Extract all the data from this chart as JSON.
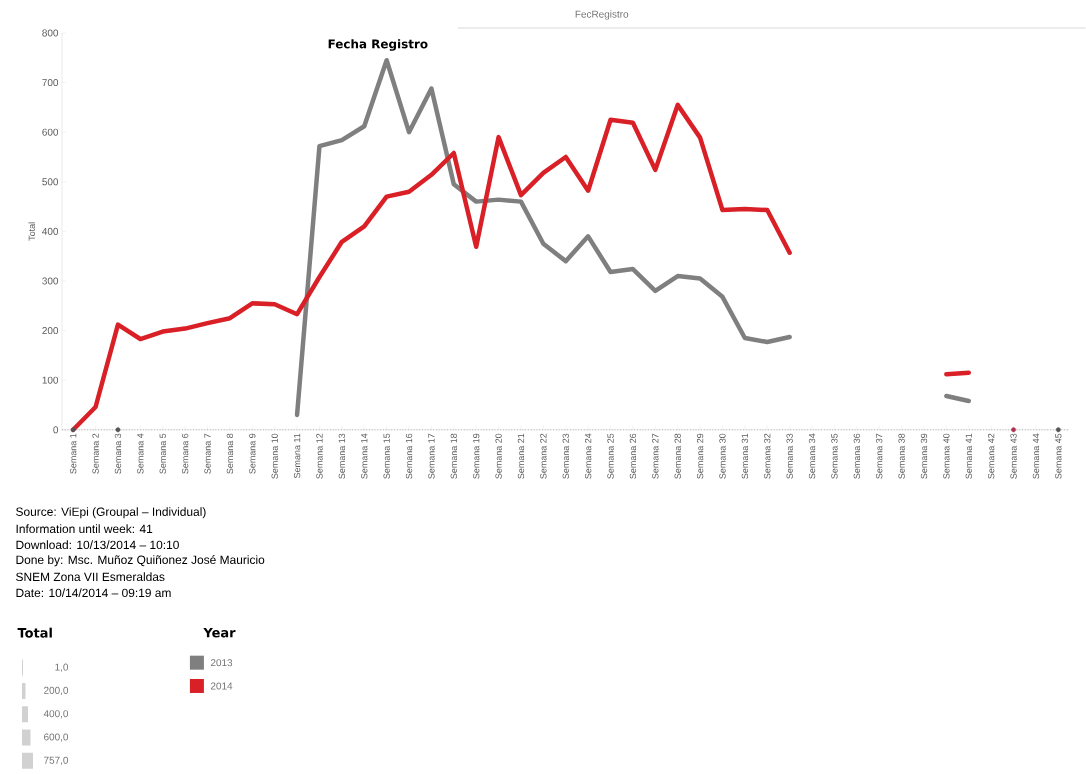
{
  "chart_data": {
    "type": "line",
    "title": "Fecha Registro",
    "subtitle": "FecRegistro",
    "ylabel": "Total",
    "legend_title": "Year",
    "categories": [
      "Semana 1",
      "Semana 2",
      "Semana 3",
      "Semana 4",
      "Semana 5",
      "Semana 6",
      "Semana 7",
      "Semana 8",
      "Semana 9",
      "Semana 10",
      "Semana 11",
      "Semana 12",
      "Semana 13",
      "Semana 14",
      "Semana 15",
      "Semana 16",
      "Semana 17",
      "Semana 18",
      "Semana 19",
      "Semana 20",
      "Semana 21",
      "Semana 22",
      "Semana 23",
      "Semana 24",
      "Semana 25",
      "Semana 26",
      "Semana 27",
      "Semana 28",
      "Semana 29",
      "Semana 30",
      "Semana 31",
      "Semana 32",
      "Semana 33",
      "Semana 34",
      "Semana 35",
      "Semana 36",
      "Semana 37",
      "Semana 38",
      "Semana 39",
      "Semana 40",
      "Semana 41",
      "Semana 42",
      "Semana 43",
      "Semana 44",
      "Semana 45"
    ],
    "series": [
      {
        "name": "2013",
        "color": "#7f7f7f",
        "values": [
          null,
          null,
          null,
          null,
          null,
          null,
          null,
          null,
          null,
          null,
          30,
          572,
          584,
          612,
          745,
          600,
          688,
          495,
          460,
          464,
          460,
          375,
          340,
          390,
          318,
          324,
          280,
          310,
          305,
          268,
          185,
          177,
          187,
          null,
          null,
          null,
          null,
          null,
          null,
          68,
          58,
          null,
          null,
          null,
          null
        ]
      },
      {
        "name": "2014",
        "color": "#d92027",
        "values": [
          0,
          46,
          212,
          183,
          198,
          204,
          215,
          225,
          255,
          253,
          233,
          308,
          379,
          410,
          470,
          480,
          514,
          558,
          369,
          590,
          473,
          518,
          550,
          482,
          625,
          619,
          524,
          655,
          589,
          443,
          445,
          443,
          357,
          null,
          null,
          null,
          null,
          null,
          null,
          112,
          115,
          null,
          null,
          null,
          null
        ]
      },
      {
        "type": "scatter",
        "color": "#555555",
        "values": [
          0,
          null,
          0,
          null,
          null,
          null,
          null,
          null,
          null,
          null,
          null,
          null,
          null,
          null,
          null,
          null,
          null,
          null,
          null,
          null,
          null,
          null,
          null,
          null,
          null,
          null,
          null,
          null,
          null,
          null,
          null,
          null,
          null,
          null,
          null,
          null,
          null,
          null,
          null,
          null,
          null,
          null,
          null,
          null,
          0
        ]
      },
      {
        "type": "scatter",
        "color": "#b03050",
        "values": [
          null,
          null,
          null,
          null,
          null,
          null,
          null,
          null,
          null,
          null,
          null,
          null,
          null,
          null,
          null,
          null,
          null,
          null,
          null,
          null,
          null,
          null,
          null,
          null,
          null,
          null,
          null,
          null,
          null,
          null,
          null,
          null,
          null,
          null,
          null,
          null,
          null,
          null,
          null,
          null,
          null,
          null,
          0,
          null,
          null
        ]
      }
    ],
    "ylim": [
      0,
      800
    ],
    "yticks": [
      0,
      100,
      200,
      300,
      400,
      500,
      600,
      700,
      800
    ],
    "ref_lines": [
      {
        "axis": "y",
        "value": 0,
        "color": "#9a9a9a",
        "line_style": "dotted"
      }
    ],
    "legend": "bottom left",
    "marker": "none",
    "line_style": "solid",
    "annotations": [
      "Source: ViEpi (Groupal – Individual)",
      "Information until week: 41",
      "Download: 10/13/2014 – 10:10",
      "Done by: Msc. Muñoz Quiñonez José Mauricio",
      "SNEM Zona VII Esmeraldas",
      "Date: 10/14/2014 – 09:19 am",
      "Total",
      "1,0",
      "200,0",
      "400,0",
      "600,0",
      "757,0"
    ]
  }
}
